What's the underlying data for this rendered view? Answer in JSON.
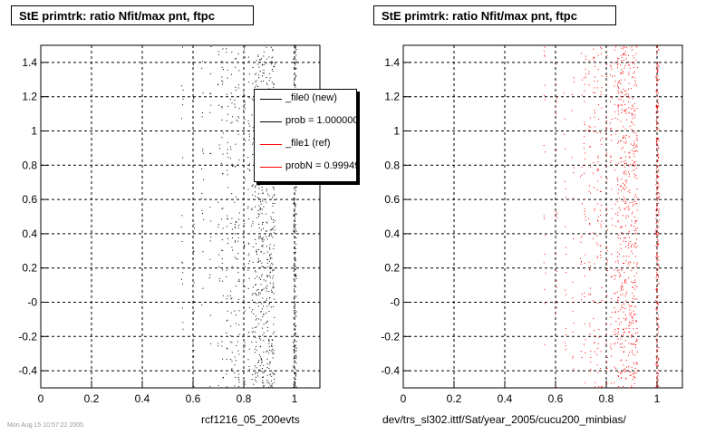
{
  "panels": [
    {
      "title": "StE primtrk: ratio Nfit/max pnt, ftpc",
      "xtitle": "rcf1216_05_200evts"
    },
    {
      "title": "StE primtrk: ratio Nfit/max pnt, ftpc",
      "xtitle": "dev/trs_sl302.ittf/Sat/year_2005/cucu200_minbias/"
    }
  ],
  "legend": {
    "items": [
      {
        "label": "_file0 (new)",
        "color": "#000000"
      },
      {
        "label": "prob = 1.000000",
        "color": "#000000"
      },
      {
        "label": "_file1 (ref)",
        "color": "#ff0000"
      },
      {
        "label": "probN = 0.99949",
        "color": "#ff0000"
      }
    ]
  },
  "footer": {
    "date": "Mon Aug 15 10:57:22 2005"
  },
  "chart_data": [
    {
      "type": "scatter",
      "title": "StE primtrk: ratio Nfit/max pnt, ftpc",
      "xlabel": "rcf1216_05_200evts",
      "ylabel": "",
      "xlim": [
        0,
        1.1
      ],
      "ylim": [
        -0.5,
        1.5
      ],
      "xticks": [
        "0",
        "0.2",
        "0.4",
        "0.6",
        "0.8",
        "1"
      ],
      "yticks": [
        "-0.4",
        "-0.2",
        "-0",
        "0.2",
        "0.4",
        "0.6",
        "0.8",
        "1",
        "1.2",
        "1.4"
      ],
      "grid": true,
      "series": [
        {
          "name": "_file0 (new)",
          "color": "#000000",
          "x_columns": [
            0.556,
            0.6,
            0.636,
            0.667,
            0.7,
            0.714,
            0.733,
            0.75,
            0.765,
            0.778,
            0.8,
            0.818,
            0.833,
            0.846,
            0.857,
            0.867,
            0.875,
            0.889,
            0.9,
            0.909,
            0.917,
            1.0
          ],
          "y_range": [
            -0.5,
            1.5
          ]
        }
      ]
    },
    {
      "type": "scatter",
      "title": "StE primtrk: ratio Nfit/max pnt, ftpc",
      "xlabel": "dev/trs_sl302.ittf/Sat/year_2005/cucu200_minbias/",
      "ylabel": "",
      "xlim": [
        0,
        1.1
      ],
      "ylim": [
        -0.5,
        1.5
      ],
      "xticks": [
        "0",
        "0.2",
        "0.4",
        "0.6",
        "0.8",
        "1"
      ],
      "yticks": [
        "-0.4",
        "-0.2",
        "-0",
        "0.2",
        "0.4",
        "0.6",
        "0.8",
        "1",
        "1.2",
        "1.4"
      ],
      "grid": true,
      "series": [
        {
          "name": "_file1 (ref)",
          "color": "#ff0000",
          "x_columns": [
            0.556,
            0.6,
            0.636,
            0.667,
            0.7,
            0.714,
            0.733,
            0.75,
            0.765,
            0.778,
            0.8,
            0.818,
            0.833,
            0.846,
            0.857,
            0.867,
            0.875,
            0.889,
            0.9,
            0.909,
            0.917,
            1.0
          ],
          "y_range": [
            -0.5,
            1.5
          ]
        }
      ]
    }
  ]
}
